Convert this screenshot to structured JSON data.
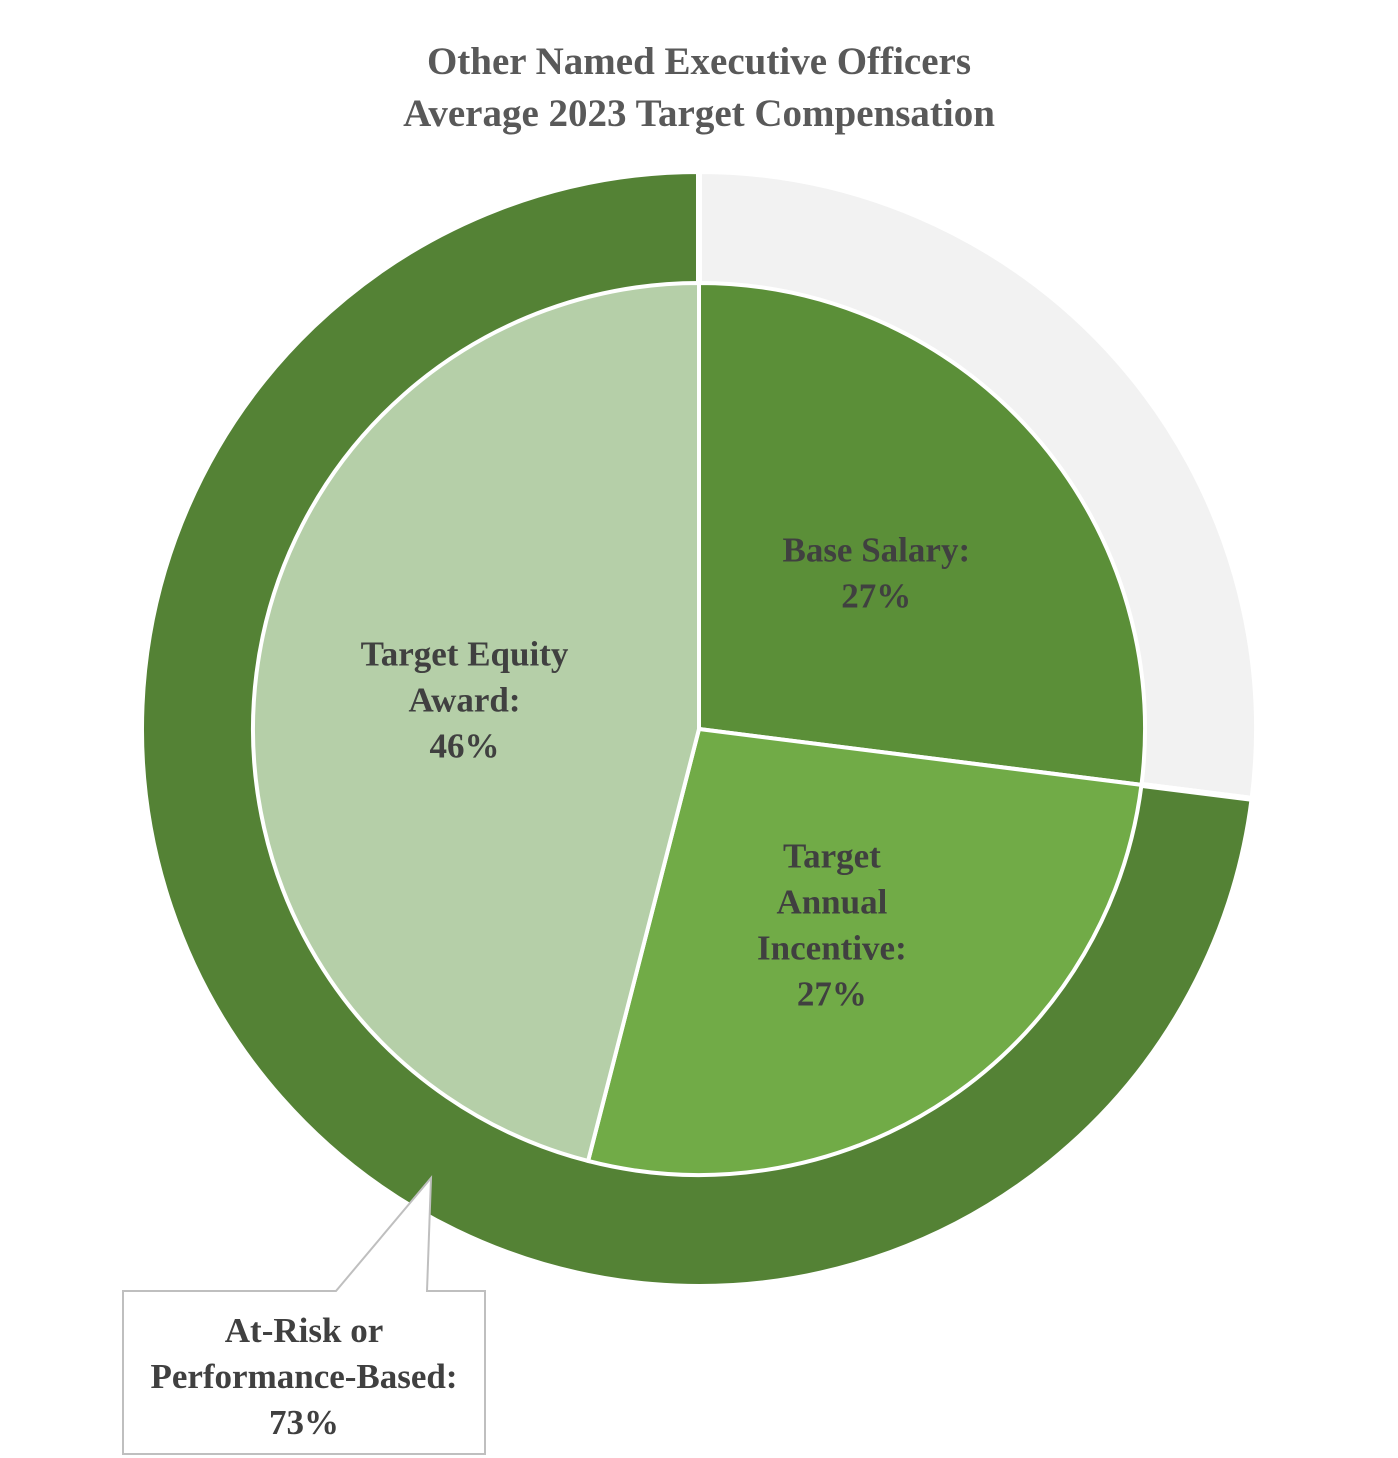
{
  "chart_data": {
    "type": "pie",
    "title": [
      "Other Named Executive Officers",
      "Average 2023 Target Compensation"
    ],
    "inner": {
      "slices": [
        {
          "name": "Base Salary:",
          "value": 27,
          "label": [
            "Base Salary:",
            "27%"
          ],
          "color": "#5b8f38"
        },
        {
          "name": "Target Annual Incentive:",
          "value": 27,
          "label": [
            "Target",
            "Annual",
            "Incentive:",
            "27%"
          ],
          "color": "#71ab47"
        },
        {
          "name": "Target Equity Award:",
          "value": 46,
          "label": [
            "Target Equity",
            "Award:",
            "46%"
          ],
          "color": "#b5cfa8"
        }
      ]
    },
    "outer": {
      "slices": [
        {
          "name": "Base Salary",
          "value": 27,
          "color": "#f2f2f2"
        },
        {
          "name": "At-Risk or Performance-Based:",
          "value": 73,
          "color": "#548235"
        }
      ],
      "callout": [
        "At-Risk or",
        "Performance-Based:",
        "73%"
      ]
    }
  }
}
